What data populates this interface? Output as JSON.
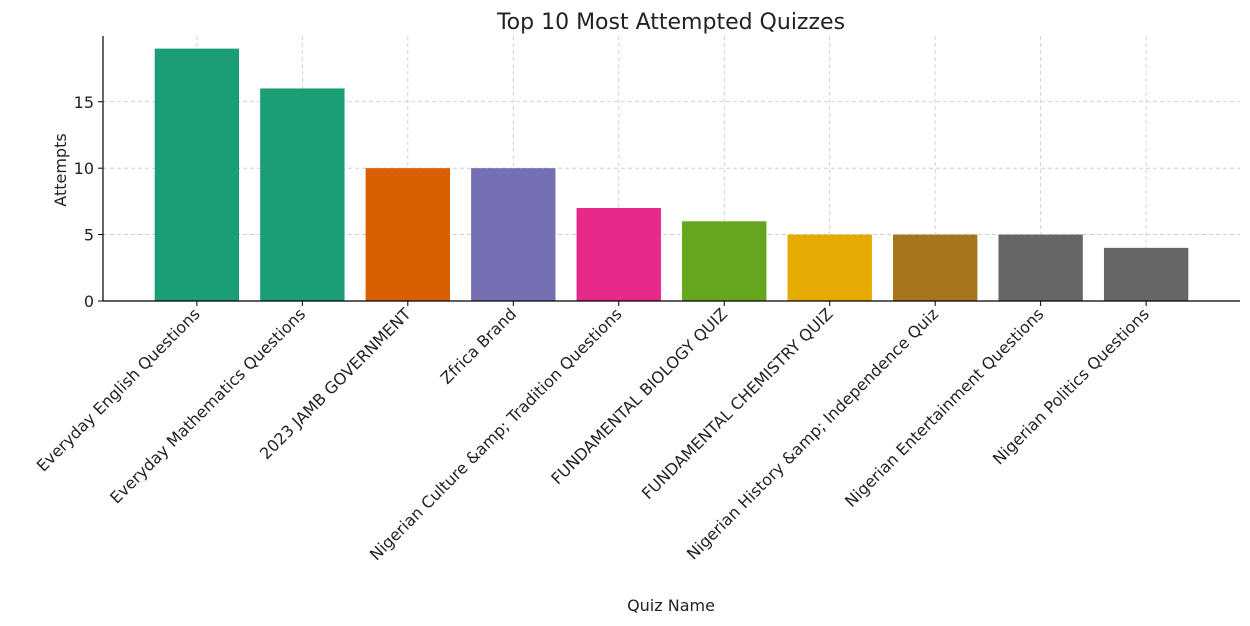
{
  "chart_data": {
    "type": "bar",
    "title": "Top 10 Most Attempted Quizzes",
    "x_label": "Quiz Name",
    "y_label": "Attempts",
    "categories": [
      "Everyday English Questions",
      "Everyday Mathematics Questions",
      "2023 JAMB GOVERNMENT",
      "Zfrica Brand",
      "Nigerian Culture &amp; Tradition Questions",
      "FUNDAMENTAL BIOLOGY QUIZ",
      "FUNDAMENTAL CHEMISTRY QUIZ",
      "Nigerian History &amp; Independence Quiz",
      "Nigerian Entertainment Questions",
      "Nigerian Politics Questions"
    ],
    "values": [
      19,
      16,
      10,
      10,
      7,
      6,
      5,
      5,
      5,
      4
    ],
    "colors": [
      "#1b9e77",
      "#1b9e77",
      "#d95f02",
      "#7570b3",
      "#e7298a",
      "#66a61e",
      "#e6ab02",
      "#a6761d",
      "#666666",
      "#666666"
    ],
    "ylim": [
      0,
      19.95
    ],
    "yticks": [
      0,
      5,
      10,
      15
    ],
    "grid": true
  }
}
